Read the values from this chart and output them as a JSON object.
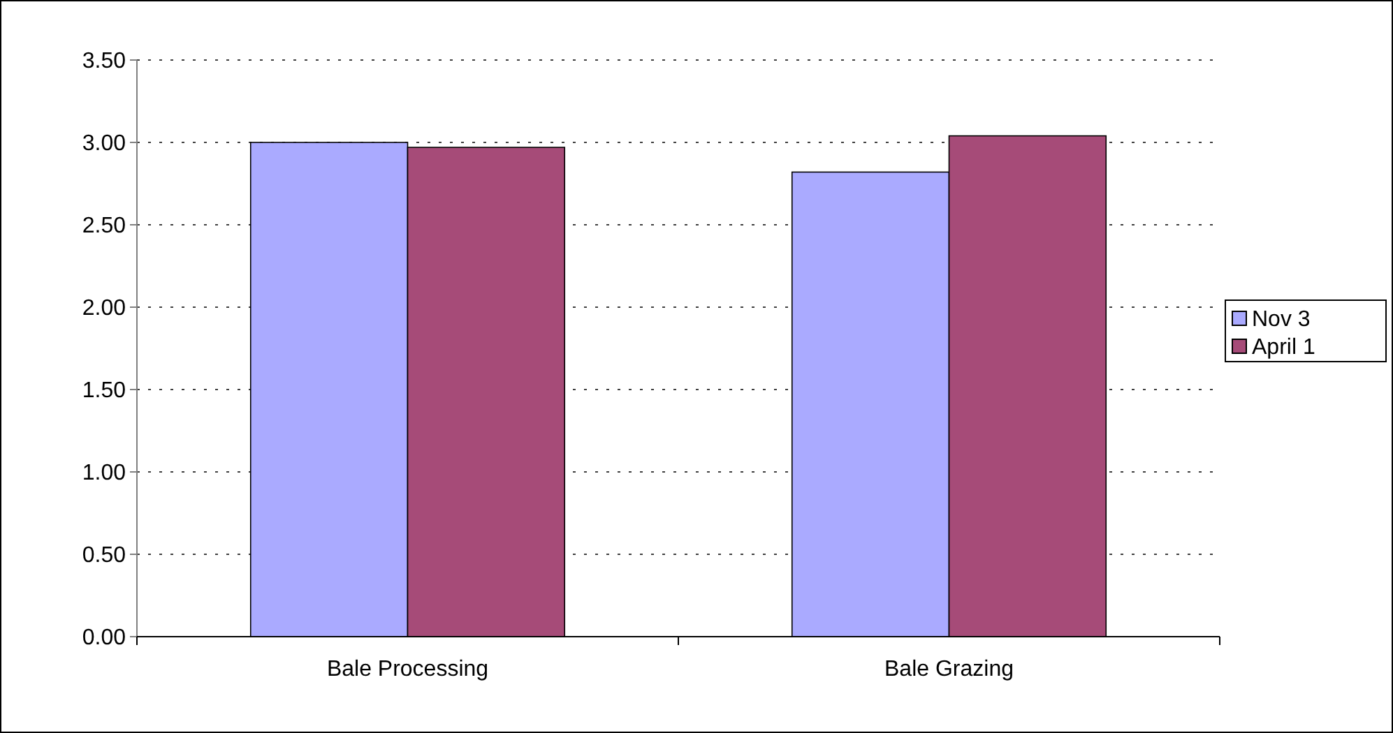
{
  "chart_data": {
    "type": "bar",
    "categories": [
      "Bale Processing",
      "Bale Grazing"
    ],
    "series": [
      {
        "name": "Nov 3",
        "color": "#aaaaff",
        "values": [
          3.0,
          2.82
        ]
      },
      {
        "name": "April 1",
        "color": "#a64b78",
        "values": [
          2.97,
          3.04
        ]
      }
    ],
    "ylim": [
      0,
      3.5
    ],
    "yticks": [
      {
        "value": 0,
        "label": "0.00"
      },
      {
        "value": 0.5,
        "label": "0.50"
      },
      {
        "value": 1,
        "label": "1.00"
      },
      {
        "value": 1.5,
        "label": "1.50"
      },
      {
        "value": 2,
        "label": "2.00"
      },
      {
        "value": 2.5,
        "label": "2.50"
      },
      {
        "value": 3,
        "label": "3.00"
      },
      {
        "value": 3.5,
        "label": "3.50"
      }
    ],
    "grid": "y",
    "legend": "right"
  }
}
